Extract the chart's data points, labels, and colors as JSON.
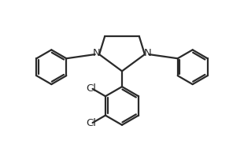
{
  "background_color": "#ffffff",
  "line_color": "#2a2a2a",
  "line_width": 1.6,
  "font_size": 9.5,
  "figsize": [
    3.1,
    2.02
  ],
  "dpi": 100,
  "xlim": [
    0,
    10
  ],
  "ylim": [
    0,
    6.6
  ]
}
